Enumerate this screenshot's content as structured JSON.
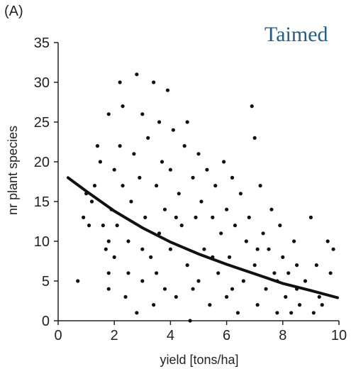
{
  "overlay_text": "Taimed",
  "chart_data": {
    "type": "scatter",
    "panel_label": "(A)",
    "title": "",
    "xlabel": "yield [tons/ha]",
    "ylabel": "nr plant species",
    "xlim": [
      0,
      10
    ],
    "ylim": [
      0,
      35
    ],
    "xticks": [
      0,
      2,
      4,
      6,
      8,
      10
    ],
    "yticks": [
      0,
      5,
      10,
      15,
      20,
      25,
      30,
      35
    ],
    "grid": false,
    "legend": "none",
    "point_color": "#111111",
    "series": [
      {
        "values": [
          [
            0.7,
            5
          ],
          [
            0.9,
            13
          ],
          [
            1.0,
            16
          ],
          [
            1.1,
            12
          ],
          [
            1.2,
            15
          ],
          [
            1.3,
            17
          ],
          [
            1.4,
            22
          ],
          [
            1.5,
            20
          ],
          [
            1.6,
            12
          ],
          [
            1.7,
            9
          ],
          [
            1.8,
            4
          ],
          [
            1.8,
            6
          ],
          [
            1.8,
            10
          ],
          [
            1.8,
            26
          ],
          [
            1.9,
            14
          ],
          [
            2.0,
            19
          ],
          [
            2.0,
            8
          ],
          [
            2.1,
            12
          ],
          [
            2.2,
            30
          ],
          [
            2.2,
            22
          ],
          [
            2.3,
            27
          ],
          [
            2.3,
            17
          ],
          [
            2.4,
            3
          ],
          [
            2.5,
            10
          ],
          [
            2.6,
            15
          ],
          [
            2.7,
            21
          ],
          [
            2.8,
            31
          ],
          [
            2.8,
            1
          ],
          [
            2.9,
            18
          ],
          [
            3.0,
            26
          ],
          [
            3.0,
            5
          ],
          [
            3.1,
            13
          ],
          [
            3.2,
            23
          ],
          [
            3.3,
            8
          ],
          [
            3.4,
            30
          ],
          [
            3.4,
            2
          ],
          [
            3.5,
            17
          ],
          [
            3.6,
            25
          ],
          [
            3.6,
            11
          ],
          [
            3.7,
            20
          ],
          [
            3.8,
            4
          ],
          [
            3.8,
            14
          ],
          [
            3.9,
            29
          ],
          [
            4.0,
            9
          ],
          [
            4.0,
            19
          ],
          [
            4.1,
            24
          ],
          [
            4.2,
            3
          ],
          [
            4.3,
            16
          ],
          [
            4.4,
            12
          ],
          [
            4.5,
            22
          ],
          [
            4.6,
            7
          ],
          [
            4.6,
            25
          ],
          [
            4.7,
            0
          ],
          [
            4.8,
            18
          ],
          [
            4.9,
            13
          ],
          [
            5.0,
            5
          ],
          [
            5.0,
            21
          ],
          [
            5.1,
            15
          ],
          [
            5.2,
            9
          ],
          [
            5.3,
            19
          ],
          [
            5.4,
            2
          ],
          [
            5.5,
            13
          ],
          [
            5.6,
            17
          ],
          [
            5.7,
            6
          ],
          [
            5.8,
            11
          ],
          [
            5.9,
            20
          ],
          [
            6.0,
            3
          ],
          [
            6.0,
            14
          ],
          [
            6.1,
            8
          ],
          [
            6.2,
            18
          ],
          [
            6.3,
            12
          ],
          [
            6.4,
            1
          ],
          [
            6.5,
            16
          ],
          [
            6.6,
            5
          ],
          [
            6.7,
            10
          ],
          [
            6.8,
            13
          ],
          [
            6.9,
            27
          ],
          [
            7.0,
            23
          ],
          [
            7.0,
            7
          ],
          [
            7.1,
            2
          ],
          [
            7.2,
            17
          ],
          [
            7.3,
            11
          ],
          [
            7.4,
            4
          ],
          [
            7.5,
            9
          ],
          [
            7.6,
            14
          ],
          [
            7.7,
            6
          ],
          [
            7.8,
            1
          ],
          [
            7.9,
            12
          ],
          [
            8.0,
            8
          ],
          [
            8.1,
            3
          ],
          [
            8.2,
            6
          ],
          [
            8.3,
            1
          ],
          [
            8.4,
            10
          ],
          [
            8.5,
            4
          ],
          [
            8.6,
            2
          ],
          [
            8.8,
            5
          ],
          [
            9.0,
            13
          ],
          [
            9.1,
            1
          ],
          [
            9.2,
            7
          ],
          [
            9.3,
            3
          ],
          [
            9.4,
            2
          ],
          [
            9.6,
            10
          ],
          [
            9.7,
            6
          ],
          [
            9.8,
            9
          ],
          [
            2.5,
            6
          ],
          [
            3.0,
            9
          ],
          [
            3.5,
            6
          ],
          [
            4.2,
            13
          ],
          [
            4.8,
            4
          ],
          [
            5.5,
            8
          ],
          [
            6.2,
            4
          ],
          [
            7.1,
            9
          ],
          [
            7.8,
            5
          ],
          [
            8.5,
            7
          ]
        ]
      }
    ],
    "fit_curve": [
      [
        0.35,
        18.0
      ],
      [
        1,
        16.3
      ],
      [
        2,
        13.8
      ],
      [
        3,
        11.7
      ],
      [
        4,
        9.9
      ],
      [
        5,
        8.4
      ],
      [
        6,
        7.1
      ],
      [
        7,
        5.9
      ],
      [
        8,
        4.7
      ],
      [
        9,
        3.8
      ],
      [
        9.95,
        2.9
      ]
    ]
  }
}
